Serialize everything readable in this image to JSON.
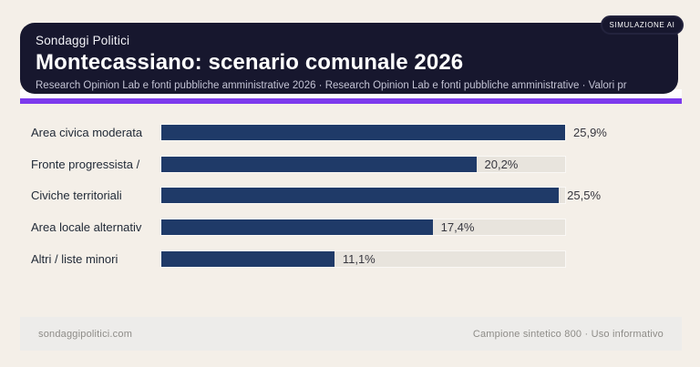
{
  "header": {
    "badge": "SIMULAZIONE AI",
    "kicker": "Sondaggi Politici",
    "title": "Montecassiano: scenario comunale 2026",
    "subtitle": "Research Opinion Lab e fonti pubbliche amministrative 2026 · Research Opinion Lab e fonti pubbliche amministrative · Valori pr",
    "colors": {
      "card_bg": "#17172e",
      "accent": "#7c3aed"
    }
  },
  "chart_data": {
    "type": "bar",
    "orientation": "horizontal",
    "categories": [
      "Area civica moderata",
      "Fronte progressista /",
      "Civiche territoriali",
      "Area locale alternativ",
      "Altri / liste minori"
    ],
    "values": [
      25.9,
      20.2,
      25.5,
      17.4,
      11.1
    ],
    "value_labels": [
      "25,9%",
      "20,2%",
      "25,5%",
      "17,4%",
      "11,1%"
    ],
    "xlim": [
      0,
      25.9
    ],
    "grid": false,
    "legend": false,
    "bar_color": "#1f3a68",
    "track_color": "#e8e4dd"
  },
  "footer": {
    "left": "sondaggipolitici.com",
    "right": "Campione sintetico 800 · Uso informativo"
  }
}
